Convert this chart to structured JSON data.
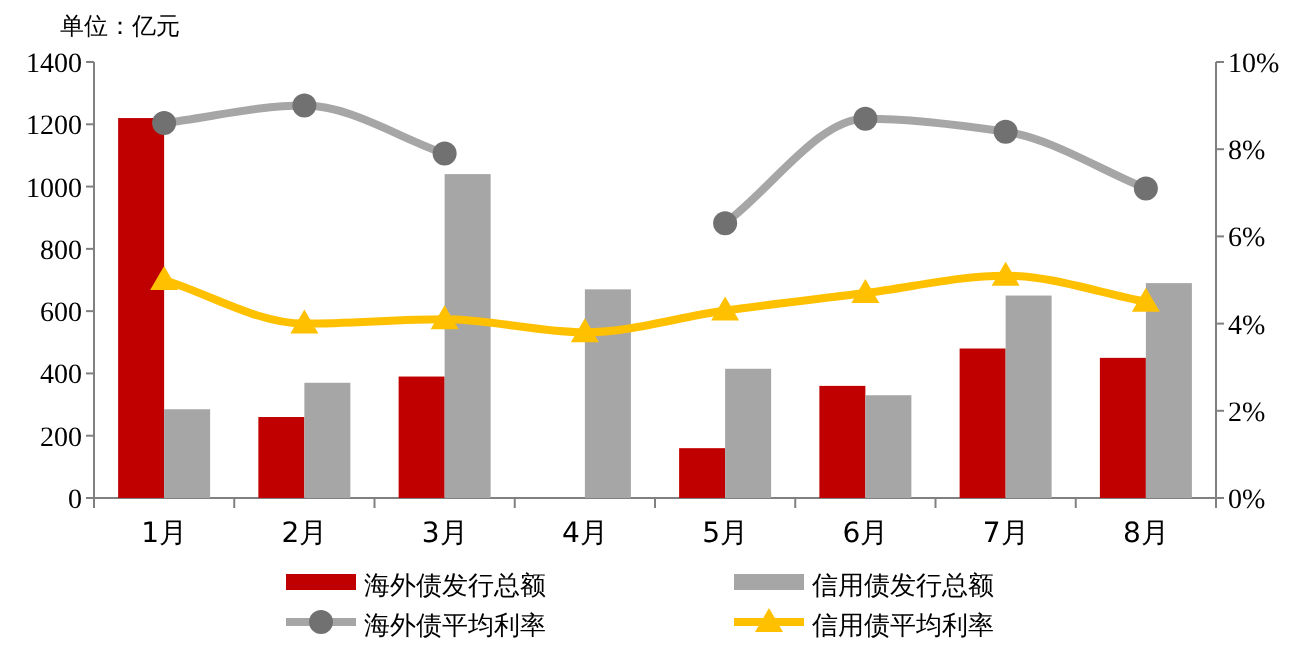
{
  "chart_data": {
    "type": "bar",
    "ylabel": "单位：亿元",
    "categories": [
      "1月",
      "2月",
      "3月",
      "4月",
      "5月",
      "6月",
      "7月",
      "8月"
    ],
    "series": [
      {
        "name": "海外债发行总额",
        "color": "#c00000",
        "values": [
          1220,
          260,
          390,
          null,
          160,
          360,
          480,
          450
        ]
      },
      {
        "name": "信用债发行总额",
        "color": "#a6a6a6",
        "values": [
          285,
          370,
          1040,
          670,
          415,
          330,
          650,
          690
        ]
      },
      {
        "name": "海外债平均利率",
        "type": "line",
        "axis": "y2",
        "color": "#a6a6a6",
        "marker": "circle",
        "values": [
          8.6,
          9.0,
          7.9,
          null,
          6.3,
          8.7,
          8.4,
          7.1
        ]
      },
      {
        "name": "信用债平均利率",
        "type": "line",
        "axis": "y2",
        "color": "#ffc000",
        "marker": "triangle",
        "values": [
          5.0,
          4.0,
          4.1,
          3.8,
          4.3,
          4.7,
          5.1,
          4.5
        ]
      }
    ],
    "ylim": [
      0,
      1400
    ],
    "yticks": [
      0,
      200,
      400,
      600,
      800,
      1000,
      1200,
      1400
    ],
    "y2lim": [
      0,
      10
    ],
    "y2ticks": [
      {
        "value": 0,
        "label": "0%"
      },
      {
        "value": 2,
        "label": "2%"
      },
      {
        "value": 4,
        "label": "4%"
      },
      {
        "value": 6,
        "label": "6%"
      },
      {
        "value": 8,
        "label": "8%"
      },
      {
        "value": 10,
        "label": "10%"
      }
    ],
    "legend": "bottom"
  }
}
